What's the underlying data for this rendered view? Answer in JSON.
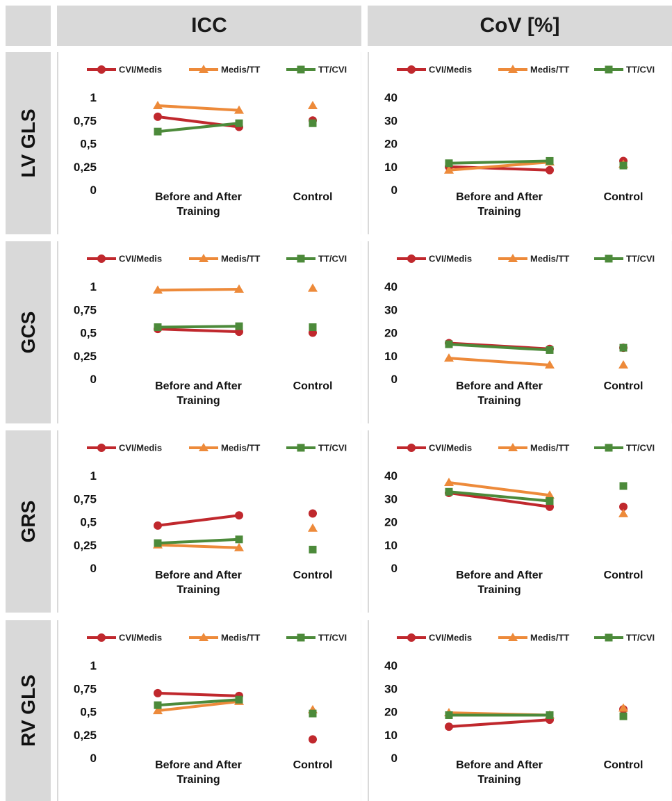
{
  "headers": {
    "corner": "",
    "icc": "ICC",
    "cov": "CoV [%]"
  },
  "rows": [
    {
      "label": "LV GLS"
    },
    {
      "label": "GCS"
    },
    {
      "label": "GRS"
    },
    {
      "label": "RV GLS"
    }
  ],
  "series_styles": [
    {
      "name": "CVI/Medis",
      "color": "#c0282d",
      "marker": "circle"
    },
    {
      "name": "Medis/TT",
      "color": "#ed8a3a",
      "marker": "triangle"
    },
    {
      "name": "TT/CVI",
      "color": "#4c8a3a",
      "marker": "square"
    }
  ],
  "chart_data": [
    {
      "id": "lvgls-icc",
      "type": "line",
      "row": "LV GLS",
      "metric": "ICC",
      "categories": [
        "Before and After Training",
        "Control"
      ],
      "ylim": [
        0,
        1
      ],
      "yticks": [
        "0",
        "0,25",
        "0,5",
        "0,75",
        "1"
      ],
      "legend": "top",
      "series": [
        {
          "name": "CVI/Medis",
          "values": [
            0.79,
            0.68
          ],
          "control": 0.75
        },
        {
          "name": "Medis/TT",
          "values": [
            0.91,
            0.86
          ],
          "control": 0.91
        },
        {
          "name": "TT/CVI",
          "values": [
            0.63,
            0.72
          ],
          "control": 0.72
        }
      ]
    },
    {
      "id": "lvgls-cov",
      "type": "line",
      "row": "LV GLS",
      "metric": "CoV [%]",
      "categories": [
        "Before and After Training",
        "Control"
      ],
      "ylim": [
        0,
        40
      ],
      "yticks": [
        "0",
        "10",
        "20",
        "30",
        "40"
      ],
      "legend": "top",
      "series": [
        {
          "name": "CVI/Medis",
          "values": [
            10,
            8.5
          ],
          "control": 12.5
        },
        {
          "name": "Medis/TT",
          "values": [
            8.5,
            12
          ],
          "control": 11
        },
        {
          "name": "TT/CVI",
          "values": [
            11.5,
            12.5
          ],
          "control": 10.5
        }
      ]
    },
    {
      "id": "gcs-icc",
      "type": "line",
      "row": "GCS",
      "metric": "ICC",
      "categories": [
        "Before and After Training",
        "Control"
      ],
      "ylim": [
        0,
        1
      ],
      "yticks": [
        "0",
        "0,25",
        "0,5",
        "0,75",
        "1"
      ],
      "legend": "top",
      "series": [
        {
          "name": "CVI/Medis",
          "values": [
            0.54,
            0.51
          ],
          "control": 0.5
        },
        {
          "name": "Medis/TT",
          "values": [
            0.96,
            0.97
          ],
          "control": 0.98
        },
        {
          "name": "TT/CVI",
          "values": [
            0.56,
            0.57
          ],
          "control": 0.56
        }
      ]
    },
    {
      "id": "gcs-cov",
      "type": "line",
      "row": "GCS",
      "metric": "CoV [%]",
      "categories": [
        "Before and After Training",
        "Control"
      ],
      "ylim": [
        0,
        40
      ],
      "yticks": [
        "0",
        "10",
        "20",
        "30",
        "40"
      ],
      "legend": "top",
      "series": [
        {
          "name": "CVI/Medis",
          "values": [
            15.5,
            13
          ],
          "control": 13.5
        },
        {
          "name": "Medis/TT",
          "values": [
            9,
            6
          ],
          "control": 6
        },
        {
          "name": "TT/CVI",
          "values": [
            15,
            12.5
          ],
          "control": 13.5
        }
      ]
    },
    {
      "id": "grs-icc",
      "type": "line",
      "row": "GRS",
      "metric": "ICC",
      "categories": [
        "Before and After Training",
        "Control"
      ],
      "ylim": [
        0,
        1
      ],
      "yticks": [
        "0",
        "0,25",
        "0,5",
        "0,75",
        "1"
      ],
      "legend": "top",
      "series": [
        {
          "name": "CVI/Medis",
          "values": [
            0.46,
            0.57
          ],
          "control": 0.59
        },
        {
          "name": "Medis/TT",
          "values": [
            0.25,
            0.22
          ],
          "control": 0.43
        },
        {
          "name": "TT/CVI",
          "values": [
            0.27,
            0.31
          ],
          "control": 0.2
        }
      ]
    },
    {
      "id": "grs-cov",
      "type": "line",
      "row": "GRS",
      "metric": "CoV [%]",
      "categories": [
        "Before and After Training",
        "Control"
      ],
      "ylim": [
        0,
        40
      ],
      "yticks": [
        "0",
        "10",
        "20",
        "30",
        "40"
      ],
      "legend": "top",
      "series": [
        {
          "name": "CVI/Medis",
          "values": [
            32.5,
            26.5
          ],
          "control": 26.5
        },
        {
          "name": "Medis/TT",
          "values": [
            37,
            31.5
          ],
          "control": 23.5
        },
        {
          "name": "TT/CVI",
          "values": [
            33,
            29
          ],
          "control": 35.5
        }
      ]
    },
    {
      "id": "rvgls-icc",
      "type": "line",
      "row": "RV GLS",
      "metric": "ICC",
      "categories": [
        "Before and After Training",
        "Control"
      ],
      "ylim": [
        0,
        1
      ],
      "yticks": [
        "0",
        "0,25",
        "0,5",
        "0,75",
        "1"
      ],
      "legend": "top",
      "series": [
        {
          "name": "CVI/Medis",
          "values": [
            0.7,
            0.67
          ],
          "control": 0.2
        },
        {
          "name": "Medis/TT",
          "values": [
            0.51,
            0.61
          ],
          "control": 0.52
        },
        {
          "name": "TT/CVI",
          "values": [
            0.57,
            0.63
          ],
          "control": 0.48
        }
      ]
    },
    {
      "id": "rvgls-cov",
      "type": "line",
      "row": "RV GLS",
      "metric": "CoV [%]",
      "categories": [
        "Before and After Training",
        "Control"
      ],
      "ylim": [
        0,
        40
      ],
      "yticks": [
        "0",
        "10",
        "20",
        "30",
        "40"
      ],
      "legend": "top",
      "series": [
        {
          "name": "CVI/Medis",
          "values": [
            13.5,
            16.5
          ],
          "control": 21
        },
        {
          "name": "Medis/TT",
          "values": [
            19.5,
            18.5
          ],
          "control": 21.5
        },
        {
          "name": "TT/CVI",
          "values": [
            18.5,
            18.5
          ],
          "control": 18
        }
      ]
    }
  ]
}
